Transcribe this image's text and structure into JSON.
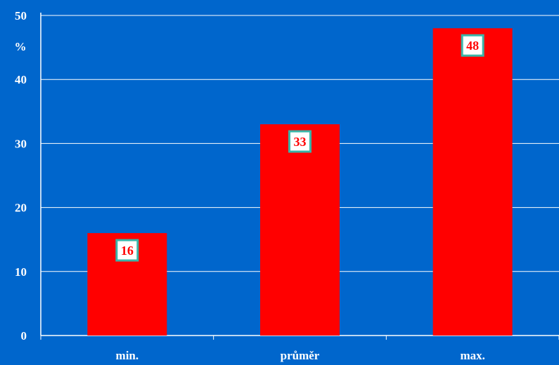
{
  "chart_data": {
    "type": "bar",
    "title": "",
    "xlabel": "",
    "ylabel": "%",
    "categories": [
      "min.",
      "průměr",
      "max."
    ],
    "values": [
      16,
      33,
      48
    ],
    "data_labels": [
      "16",
      "33",
      "48"
    ],
    "ylim": [
      0,
      50
    ],
    "yticks": [
      "0",
      "10",
      "20",
      "30",
      "40",
      "50"
    ],
    "grid": true,
    "legend": "none",
    "colors": {
      "background": "#0066CC",
      "bar": "#FF0000",
      "grid": "#FFFFFF",
      "label_box_fill": "#FFFFFF",
      "label_box_border": "#3AB5A8",
      "label_text": "#FF0000"
    }
  }
}
